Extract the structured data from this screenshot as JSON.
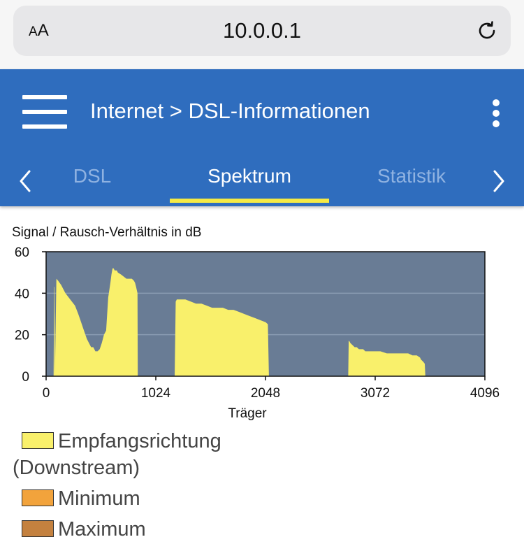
{
  "browser": {
    "text_size_label_small": "A",
    "text_size_label_large": "A",
    "url": "10.0.0.1"
  },
  "appbar": {
    "breadcrumb": "Internet > DSL-Informationen",
    "tabs": [
      {
        "label": "DSL",
        "active": false
      },
      {
        "label": "Spektrum",
        "active": true
      },
      {
        "label": "Statistik",
        "active": false
      }
    ]
  },
  "colors": {
    "appbar": "#2f6dbe",
    "tab_underline": "#f6ea44",
    "plot_background": "#697c95",
    "downstream": "#f9f06b",
    "minimum": "#f2a33c",
    "maximum": "#c4813f"
  },
  "chart_data": {
    "type": "area",
    "title": "Signal / Rausch-Verhältnis in dB",
    "xlabel": "Träger",
    "xlim": [
      0,
      4096
    ],
    "ylim": [
      0,
      60
    ],
    "xticks": [
      "0",
      "1024",
      "2048",
      "3072",
      "4096"
    ],
    "yticks": [
      "0",
      "20",
      "40",
      "60"
    ],
    "grid": "horizontal",
    "series": [
      {
        "name": "Empfangsrichtung (Downstream)",
        "color": "#f9f06b",
        "x": [
          70,
          75,
          78,
          82,
          96,
          112,
          140,
          180,
          225,
          270,
          300,
          320,
          340,
          360,
          380,
          400,
          420,
          440,
          460,
          480,
          500,
          520,
          540,
          560,
          580,
          600,
          610,
          620,
          630,
          640,
          650,
          660,
          670,
          700,
          750,
          800,
          820,
          830,
          840,
          853,
          856,
          860,
          1200,
          1210,
          1220,
          1260,
          1300,
          1350,
          1400,
          1450,
          1500,
          1550,
          1600,
          1650,
          1700,
          1750,
          1800,
          1850,
          1900,
          1950,
          2000,
          2050,
          2070,
          2080,
          2090,
          2100,
          2820,
          2825,
          2830,
          2840,
          2860,
          2880,
          2900,
          2920,
          2940,
          2960,
          2980,
          3000,
          3060,
          3120,
          3180,
          3220,
          3260,
          3300,
          3340,
          3380,
          3420,
          3460,
          3490,
          3500,
          3520,
          3535,
          3540,
          3545,
          3550
        ],
        "values": [
          0,
          43,
          43,
          0,
          47,
          46,
          44,
          40,
          37,
          34,
          30,
          27,
          24,
          21,
          18,
          16,
          14,
          14,
          12,
          12,
          13,
          16,
          20,
          22,
          38,
          45,
          49,
          52,
          52,
          51,
          51,
          51,
          50,
          49,
          47,
          47,
          46,
          45,
          43,
          40,
          0,
          0,
          0,
          36,
          37,
          37,
          37,
          36,
          35,
          35,
          34,
          33,
          33,
          33,
          32,
          32,
          31,
          30,
          29,
          28,
          27,
          26,
          25,
          0,
          0,
          0,
          0,
          17,
          17,
          16,
          15,
          14,
          14,
          13,
          13,
          13,
          12,
          12,
          12,
          12,
          11,
          11,
          11,
          11,
          11,
          11,
          10,
          10,
          9,
          8,
          7,
          6,
          0,
          0,
          0
        ]
      }
    ],
    "legend": [
      {
        "label": "Empfangsrichtung (Downstream)",
        "color": "#f9f06b"
      },
      {
        "label": "Minimum",
        "color": "#f2a33c"
      },
      {
        "label": "Maximum",
        "color": "#c4813f"
      }
    ],
    "legend_placement": "bottom-left"
  }
}
